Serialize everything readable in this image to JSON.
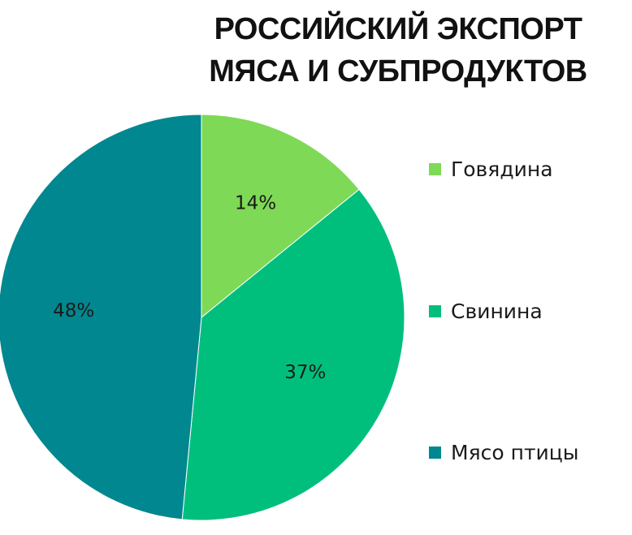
{
  "chart_data": {
    "type": "pie",
    "title": "РОССИЙСКИЙ ЭКСПОРТ МЯСА И СУБПРОДУКТОВ",
    "title_lines": [
      "РОССИЙСКИЙ ЭКСПОРТ",
      "МЯСА И СУБПРОДУКТОВ"
    ],
    "legend_position": "right",
    "slices": [
      {
        "name": "Говядина",
        "value": 14,
        "label": "14%",
        "color": "#7ed957"
      },
      {
        "name": "Свинина",
        "value": 37,
        "label": "37%",
        "color": "#00bf7d"
      },
      {
        "name": "Мясо птицы",
        "value": 48,
        "label": "48%",
        "color": "#00878f"
      }
    ]
  }
}
